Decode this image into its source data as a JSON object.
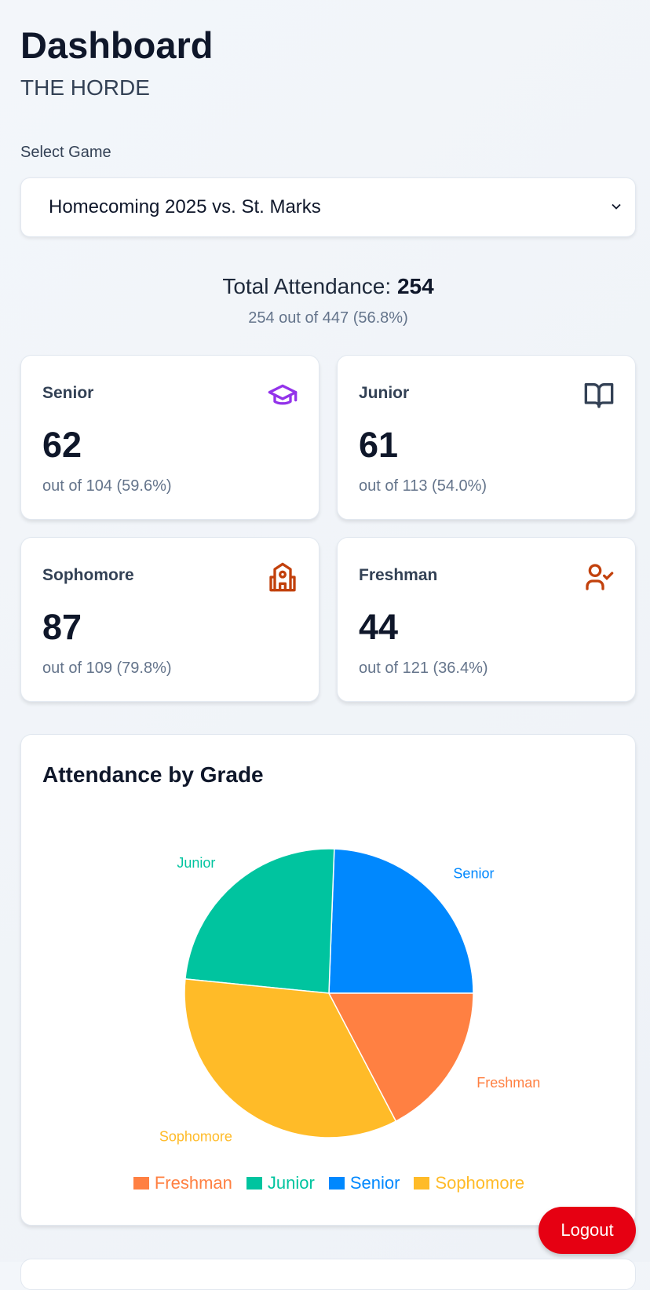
{
  "header": {
    "title": "Dashboard",
    "subtitle": "THE HORDE"
  },
  "game_select": {
    "label": "Select Game",
    "value": "Homecoming 2025 vs. St. Marks"
  },
  "summary": {
    "label": "Total Attendance: ",
    "total": "254",
    "detail": "254 out of 447 (56.8%)"
  },
  "cards": [
    {
      "label": "Senior",
      "count": "62",
      "detail": "out of 104 (59.6%)",
      "icon": "graduation-cap-icon",
      "color": "#9333ea"
    },
    {
      "label": "Junior",
      "count": "61",
      "detail": "out of 113 (54.0%)",
      "icon": "book-open-icon",
      "color": "#334155"
    },
    {
      "label": "Sophomore",
      "count": "87",
      "detail": "out of 109 (79.8%)",
      "icon": "school-icon",
      "color": "#c2410c"
    },
    {
      "label": "Freshman",
      "count": "44",
      "detail": "out of 121 (36.4%)",
      "icon": "user-check-icon",
      "color": "#c2410c"
    }
  ],
  "chart_data": {
    "type": "pie",
    "title": "Attendance by Grade",
    "slices": [
      {
        "name": "Senior",
        "value": 62,
        "color": "#0088fe"
      },
      {
        "name": "Junior",
        "value": 61,
        "color": "#00c49f"
      },
      {
        "name": "Sophomore",
        "value": 87,
        "color": "#ffbb28"
      },
      {
        "name": "Freshman",
        "value": 44,
        "color": "#ff8042"
      }
    ],
    "legend": [
      {
        "name": "Freshman",
        "color": "#ff8042"
      },
      {
        "name": "Junior",
        "color": "#00c49f"
      },
      {
        "name": "Senior",
        "color": "#0088fe"
      },
      {
        "name": "Sophomore",
        "color": "#ffbb28"
      }
    ],
    "legend_position": "bottom"
  },
  "logout_label": "Logout"
}
